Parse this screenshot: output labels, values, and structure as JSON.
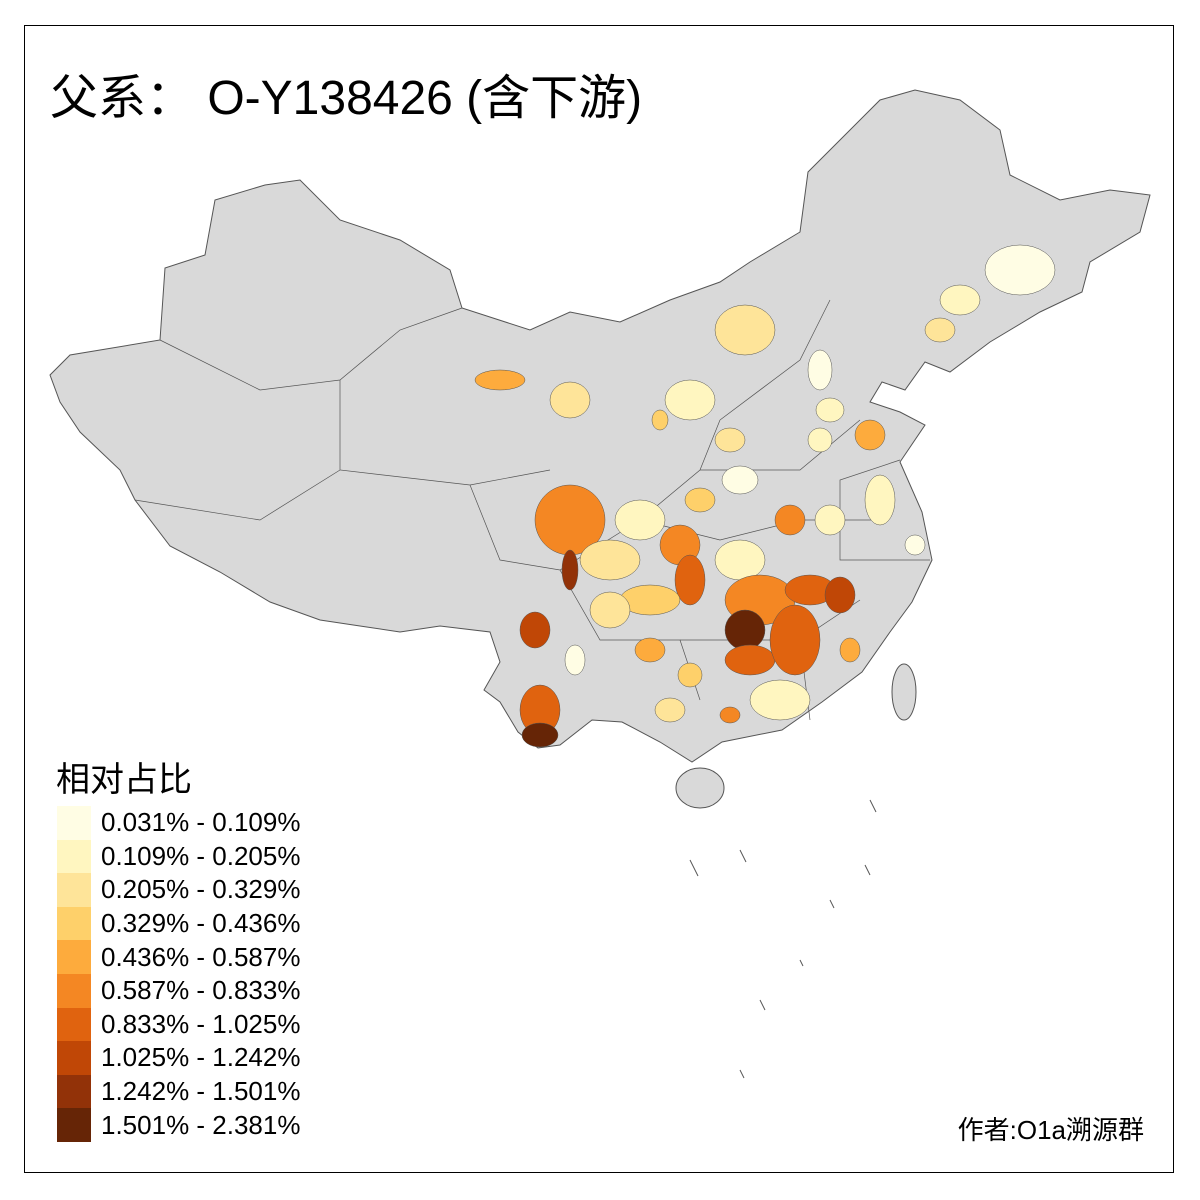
{
  "title": "父系：  O-Y138426 (含下游)",
  "legend": {
    "title": "相对占比",
    "classes": [
      {
        "label": "0.031% - 0.109%",
        "color": "#FFFDE4"
      },
      {
        "label": "0.109% - 0.205%",
        "color": "#FFF6C0"
      },
      {
        "label": "0.205% - 0.329%",
        "color": "#FEE499"
      },
      {
        "label": "0.329% - 0.436%",
        "color": "#FED06A"
      },
      {
        "label": "0.436% - 0.587%",
        "color": "#FDAB3D"
      },
      {
        "label": "0.587% - 0.833%",
        "color": "#F48723"
      },
      {
        "label": "0.833% - 1.025%",
        "color": "#E0630F"
      },
      {
        "label": "1.025% - 1.242%",
        "color": "#C04706"
      },
      {
        "label": "1.242% - 1.501%",
        "color": "#923208"
      },
      {
        "label": "1.501% - 2.381%",
        "color": "#662506"
      }
    ]
  },
  "colors": {
    "land": "#D9D9D9",
    "border": "#555555",
    "no_data": "#D9D9D9"
  },
  "credit": "作者:O1a溯源群"
}
